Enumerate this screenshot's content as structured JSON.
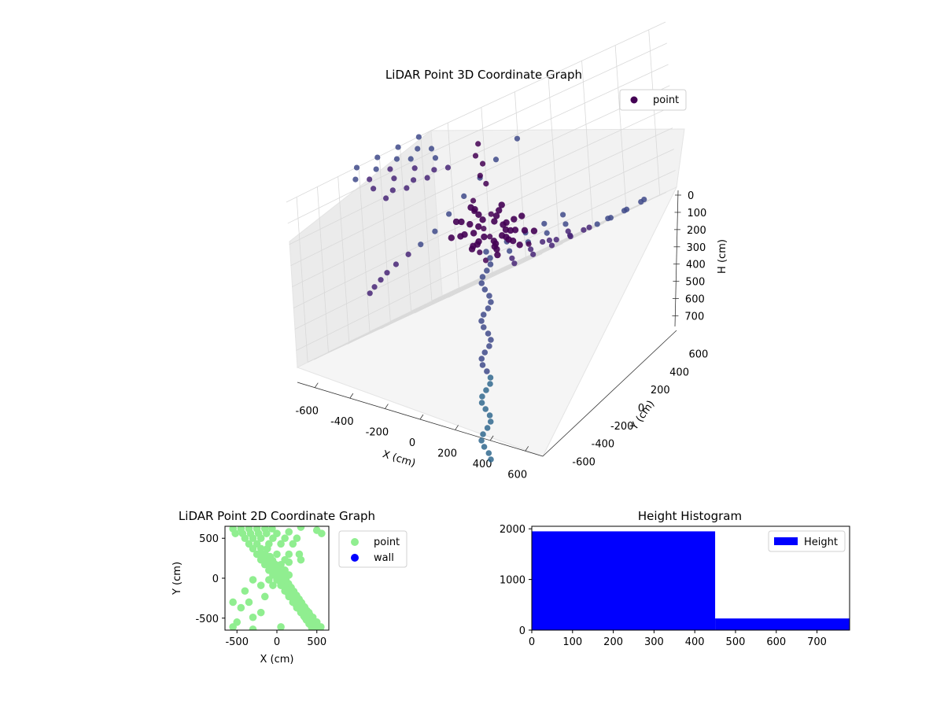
{
  "chart_data": [
    {
      "type": "scatter",
      "projection": "3d",
      "title": "LiDAR Point 3D Coordinate Graph",
      "xlabel": "X (cm)",
      "ylabel": "Y (cm)",
      "zlabel": "H (cm)",
      "xlim": [
        -700,
        700
      ],
      "ylim": [
        -700,
        700
      ],
      "zlim": [
        0,
        780
      ],
      "z_inverted": true,
      "xticks": [
        -600,
        -400,
        -200,
        0,
        200,
        400,
        600
      ],
      "yticks": [
        -600,
        -400,
        -200,
        0,
        200,
        400,
        600
      ],
      "zticks": [
        0,
        100,
        200,
        300,
        400,
        500,
        600,
        700
      ],
      "grid": true,
      "legend": {
        "position": "top-right",
        "entries": [
          {
            "label": "point",
            "color": "#440154"
          }
        ]
      },
      "colormap": "viridis (by distance)",
      "series": [
        {
          "name": "point",
          "color": "#440154",
          "points": [
            [
              -100,
              650,
              0
            ],
            [
              100,
              650,
              0
            ],
            [
              300,
              650,
              0
            ],
            [
              500,
              650,
              0
            ],
            [
              -200,
              600,
              50
            ],
            [
              0,
              600,
              50
            ],
            [
              200,
              600,
              50
            ],
            [
              400,
              600,
              50
            ],
            [
              -150,
              550,
              80
            ],
            [
              50,
              550,
              80
            ],
            [
              250,
              550,
              80
            ],
            [
              450,
              550,
              80
            ],
            [
              -200,
              500,
              130
            ],
            [
              0,
              500,
              130
            ],
            [
              200,
              500,
              130
            ],
            [
              400,
              500,
              130
            ],
            [
              -100,
              450,
              180
            ],
            [
              100,
              450,
              180
            ],
            [
              300,
              450,
              180
            ],
            [
              -250,
              400,
              200
            ],
            [
              -50,
              400,
              200
            ],
            [
              150,
              400,
              200
            ],
            [
              350,
              400,
              200
            ],
            [
              -600,
              -600,
              200
            ],
            [
              -650,
              -500,
              250
            ],
            [
              -650,
              -400,
              300
            ],
            [
              -650,
              -300,
              350
            ],
            [
              -640,
              -200,
              400
            ],
            [
              -620,
              -100,
              450
            ],
            [
              -600,
              0,
              480
            ],
            [
              -560,
              100,
              500
            ],
            [
              -520,
              200,
              520
            ],
            [
              -480,
              280,
              540
            ],
            [
              -430,
              350,
              560
            ],
            [
              -380,
              420,
              580
            ],
            [
              -330,
              480,
              600
            ],
            [
              -600,
              -500,
              650
            ],
            [
              -500,
              -550,
              650
            ],
            [
              -400,
              -600,
              650
            ],
            [
              -300,
              -650,
              650
            ],
            [
              -500,
              -450,
              700
            ],
            [
              -400,
              -500,
              700
            ],
            [
              -300,
              -550,
              700
            ],
            [
              -200,
              -600,
              700
            ],
            [
              -400,
              -400,
              740
            ],
            [
              -300,
              -450,
              740
            ],
            [
              -200,
              -500,
              740
            ],
            [
              -100,
              -550,
              740
            ],
            [
              -300,
              -350,
              770
            ],
            [
              -200,
              -400,
              770
            ],
            [
              -100,
              -450,
              770
            ],
            [
              0,
              -500,
              770
            ],
            [
              100,
              -550,
              770
            ],
            [
              200,
              -600,
              770
            ],
            [
              300,
              -650,
              770
            ],
            [
              0,
              0,
              150
            ],
            [
              50,
              50,
              200
            ],
            [
              -50,
              -50,
              250
            ],
            [
              0,
              0,
              300
            ],
            [
              50,
              0,
              350
            ],
            [
              0,
              50,
              400
            ],
            [
              -30,
              30,
              450
            ],
            [
              30,
              -30,
              500
            ],
            [
              0,
              0,
              550
            ],
            [
              20,
              -20,
              600
            ],
            [
              -20,
              20,
              650
            ],
            [
              0,
              0,
              700
            ],
            [
              250,
              -100,
              720
            ],
            [
              300,
              -150,
              740
            ],
            [
              350,
              -200,
              760
            ],
            [
              400,
              -250,
              770
            ],
            [
              450,
              -300,
              775
            ],
            [
              500,
              -350,
              778
            ],
            [
              550,
              -400,
              778
            ],
            [
              600,
              -450,
              775
            ],
            [
              600,
              -550,
              770
            ],
            [
              550,
              -600,
              765
            ]
          ]
        }
      ]
    },
    {
      "type": "scatter",
      "title": "LiDAR Point 2D Coordinate Graph",
      "xlabel": "X (cm)",
      "ylabel": "Y (cm)",
      "xlim": [
        -650,
        650
      ],
      "ylim": [
        -650,
        650
      ],
      "xticks": [
        -500,
        0,
        500
      ],
      "yticks": [
        -500,
        0,
        500
      ],
      "legend": {
        "position": "outside-right",
        "entries": [
          {
            "label": "point",
            "color": "#90ee90"
          },
          {
            "label": "wall",
            "color": "#0000ff"
          }
        ]
      },
      "series": [
        {
          "name": "point",
          "color": "#90ee90",
          "points": [
            [
              -550,
              620
            ],
            [
              -450,
              620
            ],
            [
              -350,
              620
            ],
            [
              -250,
              620
            ],
            [
              -150,
              620
            ],
            [
              -60,
              620
            ],
            [
              300,
              640
            ],
            [
              500,
              600
            ],
            [
              -520,
              560
            ],
            [
              -430,
              560
            ],
            [
              -330,
              560
            ],
            [
              -230,
              560
            ],
            [
              -130,
              560
            ],
            [
              0,
              560
            ],
            [
              150,
              580
            ],
            [
              560,
              560
            ],
            [
              -400,
              500
            ],
            [
              -300,
              500
            ],
            [
              -200,
              500
            ],
            [
              -50,
              500
            ],
            [
              100,
              500
            ],
            [
              250,
              500
            ],
            [
              -350,
              430
            ],
            [
              -250,
              430
            ],
            [
              -100,
              430
            ],
            [
              50,
              430
            ],
            [
              200,
              430
            ],
            [
              -300,
              370
            ],
            [
              -200,
              370
            ],
            [
              -120,
              370
            ],
            [
              0,
              300
            ],
            [
              150,
              300
            ],
            [
              280,
              300
            ],
            [
              -250,
              300
            ],
            [
              -150,
              300
            ],
            [
              -200,
              230
            ],
            [
              -100,
              230
            ],
            [
              100,
              230
            ],
            [
              300,
              230
            ],
            [
              -150,
              170
            ],
            [
              -50,
              170
            ],
            [
              50,
              170
            ],
            [
              150,
              200
            ],
            [
              -100,
              100
            ],
            [
              0,
              100
            ],
            [
              100,
              100
            ],
            [
              -50,
              40
            ],
            [
              50,
              40
            ],
            [
              150,
              40
            ],
            [
              -100,
              -20
            ],
            [
              0,
              -20
            ],
            [
              100,
              -20
            ],
            [
              -300,
              -20
            ],
            [
              -50,
              -90
            ],
            [
              50,
              -90
            ],
            [
              150,
              -90
            ],
            [
              -200,
              -90
            ],
            [
              100,
              -160
            ],
            [
              200,
              -160
            ],
            [
              -400,
              -160
            ],
            [
              150,
              -230
            ],
            [
              250,
              -230
            ],
            [
              -150,
              -230
            ],
            [
              200,
              -300
            ],
            [
              300,
              -300
            ],
            [
              -550,
              -300
            ],
            [
              -350,
              -300
            ],
            [
              250,
              -370
            ],
            [
              350,
              -370
            ],
            [
              -450,
              -370
            ],
            [
              300,
              -430
            ],
            [
              400,
              -430
            ],
            [
              -200,
              -430
            ],
            [
              350,
              -490
            ],
            [
              450,
              -490
            ],
            [
              -300,
              -490
            ],
            [
              400,
              -550
            ],
            [
              500,
              -550
            ],
            [
              -500,
              -550
            ],
            [
              450,
              -610
            ],
            [
              550,
              -610
            ],
            [
              50,
              -610
            ],
            [
              -550,
              -610
            ],
            [
              -300,
              -640
            ],
            [
              500,
              -640
            ]
          ]
        },
        {
          "name": "wall",
          "color": "#0000ff",
          "points": []
        }
      ]
    },
    {
      "type": "bar",
      "histogram": true,
      "title": "Height Histogram",
      "xlim": [
        0,
        780
      ],
      "ylim": [
        0,
        2050
      ],
      "xticks": [
        0,
        100,
        200,
        300,
        400,
        500,
        600,
        700
      ],
      "yticks": [
        0,
        1000,
        2000
      ],
      "legend": {
        "position": "top-right",
        "entries": [
          {
            "label": "Height",
            "color": "#0000ff"
          }
        ]
      },
      "color": "#0000ff",
      "bins": [
        {
          "x0": 0,
          "x1": 450,
          "count": 1950
        },
        {
          "x0": 450,
          "x1": 780,
          "count": 230
        }
      ]
    }
  ]
}
